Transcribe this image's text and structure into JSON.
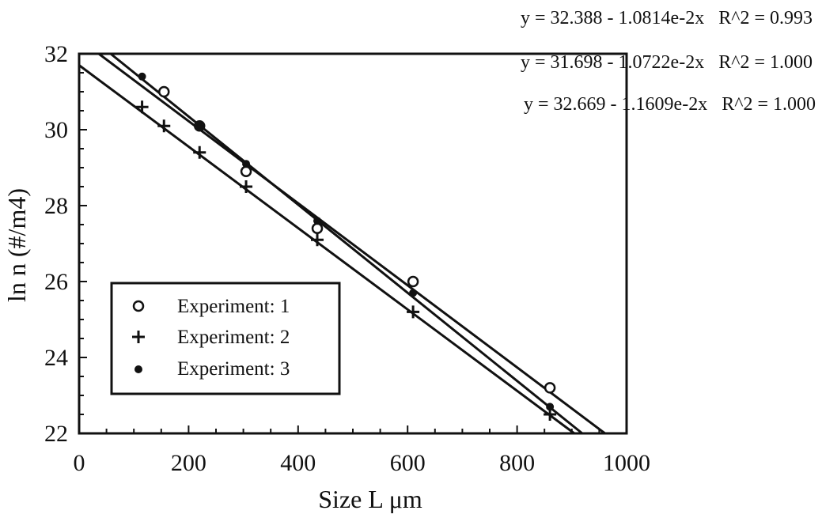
{
  "chart_data": {
    "type": "scatter",
    "xlabel": "Size L μm",
    "ylabel": "ln n (#/m4)",
    "xlim": [
      0,
      1000
    ],
    "ylim": [
      22,
      32
    ],
    "xticks": [
      0,
      200,
      400,
      600,
      800,
      1000
    ],
    "yticks": [
      22,
      24,
      26,
      28,
      30,
      32
    ],
    "x_tick_labels": [
      "0",
      "200",
      "400",
      "600",
      "800",
      "1000"
    ],
    "y_tick_labels": [
      "22",
      "24",
      "26",
      "28",
      "30",
      "32"
    ],
    "grid": false,
    "legend_position": "bottom-left",
    "series": [
      {
        "name": "Experiment: 1",
        "marker": "open-circle",
        "x": [
          155,
          220,
          305,
          435,
          610,
          860
        ],
        "y": [
          31.0,
          30.1,
          28.9,
          27.4,
          26.0,
          23.2
        ]
      },
      {
        "name": "Experiment: 2",
        "marker": "plus",
        "x": [
          115,
          155,
          220,
          305,
          435,
          610,
          860
        ],
        "y": [
          30.6,
          30.1,
          29.4,
          28.5,
          27.1,
          25.2,
          22.5
        ]
      },
      {
        "name": "Experiment: 3",
        "marker": "filled-dot",
        "x": [
          115,
          220,
          305,
          435,
          610,
          860
        ],
        "y": [
          31.4,
          30.1,
          29.1,
          27.6,
          25.7,
          22.7
        ]
      }
    ],
    "fits": [
      {
        "intercept": 32.388,
        "slope": -0.010814,
        "label": "y = 32.388 - 1.0814e-2x   R^2 = 0.993"
      },
      {
        "intercept": 31.698,
        "slope": -0.010722,
        "label": "y = 31.698 - 1.0722e-2x   R^2 = 1.000"
      },
      {
        "intercept": 32.669,
        "slope": -0.011609,
        "label": "y = 32.669 - 1.1609e-2x   R^2 = 1.000"
      }
    ],
    "colors": {
      "ink": "#111111",
      "background": "#ffffff"
    }
  }
}
